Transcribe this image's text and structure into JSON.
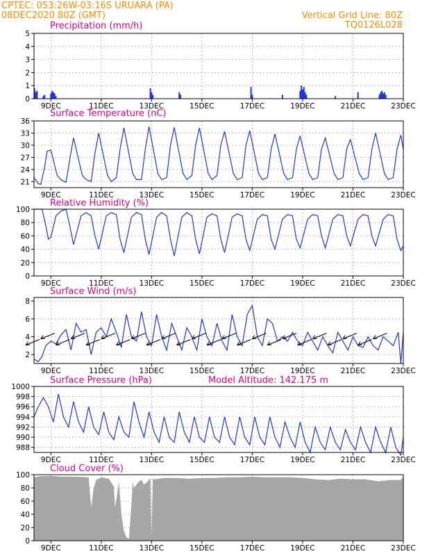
{
  "header": {
    "line1_left": "CPTEC:   053:26W-03:16S   URUARA (PA)",
    "line2_left": "08DEC2020 80Z (GMT)",
    "line1_right": "Vertical Grid Line: 80Z",
    "line2_right": "TQ0126L028"
  },
  "colors": {
    "header": "#ff8c00",
    "titles": "#e6007e",
    "series": "#2233dd",
    "bars": "#2233dd",
    "cloud": "#a6a6a6",
    "arrows": "#000000"
  },
  "chart_data": [
    {
      "type": "bar",
      "title": "Precipitation (mm/h)",
      "ylim": [
        0,
        5
      ],
      "yticks": [
        0,
        1,
        2,
        3,
        4,
        5
      ],
      "xlim": [
        8.33,
        23.0
      ],
      "xtick_values": [
        9,
        11,
        13,
        15,
        17,
        19,
        21,
        23
      ],
      "xticks": [
        "9DEC",
        "11DEC",
        "13DEC",
        "15DEC",
        "17DEC",
        "19DEC",
        "21DEC",
        "23DEC"
      ],
      "grid": true,
      "x": [
        8.35,
        8.4,
        8.45,
        8.7,
        8.75,
        9.0,
        9.05,
        9.1,
        9.15,
        9.2,
        12.95,
        13.0,
        13.05,
        14.1,
        14.15,
        16.95,
        17.0,
        18.2,
        18.9,
        18.95,
        19.0,
        19.05,
        19.1,
        19.15,
        20.3,
        21.2,
        22.05,
        22.1,
        22.15,
        22.2,
        22.25,
        22.3
      ],
      "values": [
        0.8,
        0.5,
        0.6,
        0.2,
        0.3,
        0.4,
        0.6,
        0.5,
        0.4,
        0.2,
        0.8,
        0.5,
        0.3,
        0.5,
        0.3,
        0.9,
        0.3,
        0.3,
        0.6,
        1.0,
        0.7,
        0.9,
        0.5,
        0.3,
        0.2,
        0.5,
        0.3,
        0.5,
        0.6,
        0.4,
        0.5,
        0.3
      ]
    },
    {
      "type": "line",
      "title": "Surface Temperature (nC)",
      "ylim": [
        19.5,
        36
      ],
      "yticks": [
        21,
        24,
        27,
        30,
        33,
        36
      ],
      "xlim": [
        8.33,
        23.0
      ],
      "xtick_values": [
        9,
        11,
        13,
        15,
        17,
        19,
        21,
        23
      ],
      "xticks": [
        "9DEC",
        "11DEC",
        "13DEC",
        "15DEC",
        "17DEC",
        "19DEC",
        "21DEC",
        "23DEC"
      ],
      "grid": true,
      "x": [
        8.33,
        8.5,
        8.6,
        8.75,
        8.85,
        9.0,
        9.25,
        9.4,
        9.6,
        9.75,
        9.9,
        10.25,
        10.4,
        10.6,
        10.75,
        10.9,
        11.25,
        11.4,
        11.6,
        11.75,
        11.9,
        12.25,
        12.4,
        12.6,
        12.75,
        12.9,
        13.25,
        13.4,
        13.6,
        13.75,
        13.9,
        14.25,
        14.4,
        14.6,
        14.75,
        14.9,
        15.25,
        15.4,
        15.6,
        15.75,
        15.9,
        16.25,
        16.4,
        16.6,
        16.75,
        16.9,
        17.25,
        17.4,
        17.6,
        17.75,
        17.9,
        18.25,
        18.4,
        18.6,
        18.75,
        18.9,
        19.25,
        19.4,
        19.6,
        19.75,
        19.9,
        20.25,
        20.4,
        20.6,
        20.75,
        20.9,
        21.25,
        21.4,
        21.6,
        21.75,
        21.9,
        22.25,
        22.4,
        22.6,
        22.75,
        22.9,
        23.0
      ],
      "values": [
        22,
        20.5,
        20.3,
        24.5,
        28.5,
        28.8,
        22.5,
        21.5,
        20.8,
        26.5,
        31.8,
        22.5,
        21.5,
        21.0,
        28.0,
        33.0,
        22.5,
        21.0,
        22.0,
        29.0,
        34.3,
        23.0,
        21.5,
        21.5,
        29.0,
        34.6,
        23.0,
        21.5,
        22.0,
        30.0,
        34.4,
        23.0,
        21.5,
        22.5,
        30.0,
        34.3,
        23.0,
        21.5,
        22.5,
        30.0,
        33.4,
        23.0,
        21.5,
        22.0,
        30.0,
        33.6,
        23.0,
        21.5,
        22.0,
        29.0,
        32.8,
        23.0,
        21.5,
        22.0,
        29.0,
        32.3,
        23.0,
        21.5,
        22.0,
        29.0,
        31.8,
        23.0,
        21.5,
        22.0,
        29.0,
        31.4,
        23.0,
        21.5,
        22.0,
        29.0,
        33.0,
        23.0,
        21.5,
        22.0,
        29.0,
        32.5,
        29.0
      ]
    },
    {
      "type": "line",
      "title": "Relative Humidity (%)",
      "ylim": [
        0,
        100
      ],
      "yticks": [
        0,
        20,
        40,
        60,
        80,
        100
      ],
      "xlim": [
        8.33,
        23.0
      ],
      "xtick_values": [
        9,
        11,
        13,
        15,
        17,
        19,
        21,
        23
      ],
      "xticks": [
        "9DEC",
        "11DEC",
        "13DEC",
        "15DEC",
        "17DEC",
        "19DEC",
        "21DEC",
        "23DEC"
      ],
      "grid": true,
      "x": [
        8.33,
        8.5,
        8.65,
        8.8,
        8.9,
        9.0,
        9.2,
        9.4,
        9.6,
        9.75,
        9.9,
        10.2,
        10.4,
        10.6,
        10.75,
        10.9,
        11.2,
        11.4,
        11.6,
        11.75,
        11.9,
        12.2,
        12.4,
        12.6,
        12.75,
        12.9,
        13.2,
        13.4,
        13.6,
        13.75,
        13.9,
        14.2,
        14.4,
        14.6,
        14.75,
        14.9,
        15.2,
        15.4,
        15.6,
        15.75,
        15.9,
        16.2,
        16.4,
        16.6,
        16.75,
        16.9,
        17.2,
        17.4,
        17.6,
        17.75,
        17.9,
        18.2,
        18.4,
        18.6,
        18.75,
        18.9,
        19.2,
        19.4,
        19.6,
        19.75,
        19.9,
        20.2,
        20.4,
        20.6,
        20.75,
        20.9,
        21.2,
        21.4,
        21.6,
        21.75,
        21.9,
        22.2,
        22.4,
        22.6,
        22.75,
        22.9,
        23.0
      ],
      "values": [
        100,
        100,
        100,
        75,
        55,
        58,
        90,
        97,
        100,
        75,
        47,
        90,
        95,
        90,
        60,
        40,
        90,
        95,
        92,
        55,
        35,
        88,
        95,
        92,
        55,
        32,
        88,
        95,
        90,
        55,
        30,
        88,
        95,
        90,
        55,
        33,
        88,
        93,
        90,
        55,
        35,
        88,
        93,
        90,
        55,
        38,
        85,
        92,
        90,
        55,
        40,
        85,
        92,
        90,
        55,
        42,
        85,
        92,
        90,
        60,
        42,
        85,
        92,
        90,
        60,
        45,
        85,
        92,
        90,
        60,
        45,
        85,
        92,
        90,
        55,
        38,
        45
      ]
    },
    {
      "type": "line",
      "title": "Surface Wind (m/s)",
      "ylim": [
        1,
        8.4
      ],
      "yticks": [
        2,
        4,
        6,
        8
      ],
      "xlim": [
        8.33,
        23.0
      ],
      "xtick_values": [
        9,
        11,
        13,
        15,
        17,
        19,
        21,
        23
      ],
      "xticks": [
        "9DEC",
        "11DEC",
        "13DEC",
        "15DEC",
        "17DEC",
        "19DEC",
        "21DEC",
        "23DEC"
      ],
      "grid": true,
      "x": [
        8.33,
        8.5,
        8.65,
        8.8,
        9.0,
        9.2,
        9.4,
        9.6,
        9.8,
        10.0,
        10.2,
        10.4,
        10.6,
        10.8,
        11.0,
        11.2,
        11.4,
        11.6,
        11.8,
        12.0,
        12.2,
        12.4,
        12.6,
        12.8,
        13.0,
        13.2,
        13.4,
        13.6,
        13.8,
        14.0,
        14.2,
        14.4,
        14.6,
        14.8,
        15.0,
        15.2,
        15.4,
        15.6,
        15.8,
        16.0,
        16.2,
        16.4,
        16.6,
        16.8,
        17.0,
        17.2,
        17.4,
        17.6,
        17.8,
        18.0,
        18.2,
        18.4,
        18.6,
        18.8,
        19.0,
        19.2,
        19.4,
        19.6,
        19.8,
        20.0,
        20.2,
        20.4,
        20.6,
        20.8,
        21.0,
        21.2,
        21.4,
        21.6,
        21.8,
        22.0,
        22.2,
        22.4,
        22.6,
        22.8,
        22.9,
        23.0
      ],
      "values": [
        1.5,
        1.2,
        1.8,
        3.0,
        3.5,
        3.2,
        4.2,
        4.8,
        2.5,
        5.5,
        4.5,
        4.8,
        2.0,
        4.5,
        5.0,
        4.0,
        6.0,
        4.5,
        2.8,
        6.5,
        4.0,
        3.5,
        6.8,
        4.0,
        3.0,
        6.5,
        4.0,
        2.5,
        5.5,
        4.0,
        2.5,
        5.0,
        4.0,
        2.5,
        6.0,
        4.0,
        3.0,
        5.5,
        3.5,
        2.5,
        6.5,
        4.0,
        3.0,
        6.5,
        7.5,
        4.0,
        3.0,
        6.0,
        5.5,
        3.5,
        4.0,
        3.5,
        4.5,
        3.5,
        3.0,
        4.5,
        3.5,
        2.5,
        4.0,
        3.0,
        2.2,
        4.5,
        3.5,
        2.5,
        4.0,
        3.0,
        2.8,
        4.0,
        3.0,
        2.5,
        4.0,
        3.5,
        3.0,
        4.5,
        1.0,
        4.5
      ]
    },
    {
      "type": "line",
      "title": "Surface Pressure (hPa)",
      "annotation": "Model Altitude: 142.175 m",
      "ylim": [
        987,
        1000
      ],
      "yticks": [
        988,
        990,
        992,
        994,
        996,
        998,
        1000
      ],
      "xlim": [
        8.33,
        23.0
      ],
      "xtick_values": [
        9,
        11,
        13,
        15,
        17,
        19,
        21,
        23
      ],
      "xticks": [
        "9DEC",
        "11DEC",
        "13DEC",
        "15DEC",
        "17DEC",
        "19DEC",
        "21DEC",
        "23DEC"
      ],
      "grid": true,
      "x": [
        8.33,
        8.5,
        8.7,
        8.9,
        9.1,
        9.3,
        9.5,
        9.7,
        9.9,
        10.1,
        10.3,
        10.5,
        10.7,
        10.9,
        11.1,
        11.3,
        11.5,
        11.7,
        11.9,
        12.1,
        12.3,
        12.5,
        12.7,
        12.9,
        13.1,
        13.3,
        13.5,
        13.7,
        13.9,
        14.1,
        14.3,
        14.5,
        14.7,
        14.9,
        15.1,
        15.3,
        15.5,
        15.7,
        15.9,
        16.1,
        16.3,
        16.5,
        16.7,
        16.9,
        17.1,
        17.3,
        17.5,
        17.7,
        17.9,
        18.1,
        18.3,
        18.5,
        18.7,
        18.9,
        19.1,
        19.3,
        19.5,
        19.7,
        19.9,
        20.1,
        20.3,
        20.5,
        20.7,
        20.9,
        21.1,
        21.3,
        21.5,
        21.7,
        21.9,
        22.1,
        22.3,
        22.5,
        22.7,
        22.9,
        23.0
      ],
      "values": [
        994,
        996,
        997.8,
        996,
        993,
        998.5,
        994,
        992,
        997,
        993,
        991,
        996,
        992,
        990.5,
        995,
        991,
        989.5,
        994,
        991,
        990,
        997,
        993,
        990,
        995,
        991,
        989,
        994,
        990,
        989,
        995,
        991,
        989,
        994,
        990,
        989,
        994,
        990,
        989,
        994,
        990,
        988.5,
        994,
        990,
        988.5,
        994,
        990,
        988.5,
        994,
        990,
        988,
        993,
        990,
        988,
        993,
        989,
        987,
        992,
        989,
        987.5,
        992,
        989,
        987.5,
        991.5,
        989,
        987.5,
        992,
        989,
        987,
        992,
        989,
        987,
        992,
        988,
        986.5,
        990
      ]
    },
    {
      "type": "area",
      "title": "Cloud Cover (%)",
      "ylim": [
        0,
        100
      ],
      "yticks": [
        0,
        20,
        40,
        60,
        80,
        100
      ],
      "xlim": [
        8.33,
        23.0
      ],
      "xtick_values": [
        9,
        11,
        13,
        15,
        17,
        19,
        21,
        23
      ],
      "xticks": [
        "9DEC",
        "11DEC",
        "13DEC",
        "15DEC",
        "17DEC",
        "19DEC",
        "21DEC",
        "23DEC"
      ],
      "grid": true,
      "x": [
        8.33,
        8.6,
        9.0,
        9.5,
        10.0,
        10.5,
        10.6,
        10.7,
        10.8,
        11.0,
        11.3,
        11.5,
        11.55,
        11.65,
        11.7,
        11.8,
        11.9,
        12.0,
        12.1,
        12.2,
        12.25,
        12.3,
        12.4,
        12.5,
        12.6,
        12.7,
        12.8,
        12.95,
        13.0,
        13.05,
        13.1,
        13.5,
        14.0,
        14.5,
        15.0,
        15.5,
        16.0,
        16.5,
        17.0,
        17.5,
        18.0,
        18.5,
        19.0,
        19.5,
        20.0,
        20.5,
        21.0,
        21.5,
        22.0,
        22.5,
        22.9,
        23.0
      ],
      "values": [
        96,
        98,
        98,
        97,
        97,
        96,
        50,
        80,
        92,
        96,
        94,
        82,
        50,
        75,
        90,
        40,
        15,
        5,
        3,
        55,
        90,
        80,
        85,
        90,
        92,
        85,
        88,
        95,
        3,
        95,
        93,
        95,
        95,
        94,
        95,
        95,
        96,
        96,
        97,
        96,
        96,
        96,
        95,
        93,
        92,
        94,
        93,
        93,
        90,
        92,
        92,
        97
      ]
    }
  ]
}
